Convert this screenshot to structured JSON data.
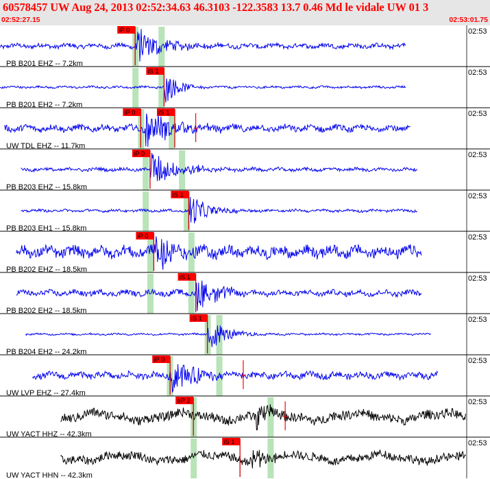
{
  "title": "60578457 UW Aug 24, 2013 02:52:34.63    46.3103 -122.3583 13.7 0.46 Md le vidale UW 01    3",
  "start_time": "02:52:27.15",
  "end_time": "02:53:01.75",
  "colors": {
    "header_bg": "#e6e6e6",
    "header_text": "#ff0000",
    "pick_bg": "#ff0000",
    "window": "#b9e3b9",
    "trace_blue": "#0000ee",
    "trace_black": "#000000",
    "separator": "#000000"
  },
  "chart_data": {
    "type": "line",
    "time_range": [
      "02:52:27.15",
      "02:53:01.75"
    ],
    "traces": [
      {
        "label": "PB B201 EHZ -- 7.2km",
        "time_tag": "02:53",
        "color": "#0000ee",
        "amplitude": 0.25,
        "trace_start": 0.0,
        "trace_end": 0.872,
        "event_onset": 0.29,
        "coda_len": 0.12,
        "picks": [
          {
            "text": "iP 0",
            "t": 0.29
          }
        ],
        "windows": [
          0.29,
          0.346
        ]
      },
      {
        "label": "PB B201 EH2 -- 7.2km",
        "time_tag": "02:53",
        "color": "#0000ee",
        "amplitude": 0.12,
        "trace_start": 0.0,
        "trace_end": 0.872,
        "event_onset": 0.352,
        "coda_len": 0.06,
        "picks": [
          {
            "text": "iS 1",
            "t": 0.352
          }
        ],
        "windows": [
          0.29,
          0.346
        ]
      },
      {
        "label": "UW TDL EHZ -- 11.7km",
        "time_tag": "02:53",
        "color": "#0000ee",
        "amplitude": 0.35,
        "trace_start": 0.01,
        "trace_end": 0.882,
        "event_onset": 0.31,
        "coda_len": 0.14,
        "picks": [
          {
            "text": "iP 0",
            "t": 0.302
          },
          {
            "text": "iS 1",
            "t": 0.375
          }
        ],
        "windows": [
          0.302,
          0.368
        ],
        "marks": [
          0.42
        ]
      },
      {
        "label": "PB B203 EHZ -- 15.8km",
        "time_tag": "02:53",
        "color": "#0000ee",
        "amplitude": 0.18,
        "trace_start": 0.045,
        "trace_end": 0.895,
        "event_onset": 0.322,
        "coda_len": 0.12,
        "picks": [
          {
            "text": "iP 0",
            "t": 0.322
          }
        ],
        "windows": [
          0.312,
          0.39
        ]
      },
      {
        "label": "PB B203 EH1 -- 15.8km",
        "time_tag": "02:53",
        "color": "#0000ee",
        "amplitude": 0.14,
        "trace_start": 0.045,
        "trace_end": 0.895,
        "event_onset": 0.405,
        "coda_len": 0.08,
        "picks": [
          {
            "text": "iS 1",
            "t": 0.405
          }
        ],
        "windows": [
          0.312,
          0.4
        ]
      },
      {
        "label": "PB B202 EHZ -- 18.5km",
        "time_tag": "02:53",
        "color": "#0000ee",
        "amplitude": 0.6,
        "trace_start": 0.035,
        "trace_end": 0.905,
        "event_onset": 0.33,
        "coda_len": 0.1,
        "picks": [
          {
            "text": "iP 0",
            "t": 0.33
          }
        ],
        "windows": [
          0.322,
          0.41
        ]
      },
      {
        "label": "PB B202 EH2 -- 18.5km",
        "time_tag": "02:53",
        "color": "#0000ee",
        "amplitude": 0.3,
        "trace_start": 0.035,
        "trace_end": 0.905,
        "event_onset": 0.42,
        "coda_len": 0.1,
        "picks": [
          {
            "text": "iS 1",
            "t": 0.42
          }
        ],
        "windows": [
          0.322,
          0.41
        ]
      },
      {
        "label": "PB B204 EH2 -- 24.2km",
        "time_tag": "02:53",
        "color": "#0000ee",
        "amplitude": 0.1,
        "trace_start": 0.055,
        "trace_end": 0.925,
        "event_onset": 0.445,
        "coda_len": 0.08,
        "picks": [
          {
            "text": "iS 1",
            "t": 0.445
          }
        ],
        "windows": [
          0.445,
          0.47
        ]
      },
      {
        "label": "UW LVP EHZ -- 27.4km",
        "time_tag": "02:53",
        "color": "#0000ee",
        "amplitude": 0.35,
        "trace_start": 0.07,
        "trace_end": 0.94,
        "event_onset": 0.365,
        "coda_len": 0.12,
        "picks": [
          {
            "text": "iP 0",
            "t": 0.365
          }
        ],
        "windows": [
          0.364,
          0.47
        ],
        "marks": [
          0.522
        ]
      },
      {
        "label": "UW YACT HHZ -- 42.3km",
        "time_tag": "02:53",
        "color": "#000000",
        "amplitude": 0.55,
        "trace_start": 0.13,
        "trace_end": 1.0,
        "event_onset": 0.55,
        "coda_len": 0.05,
        "picks": [
          {
            "text": "eP 2",
            "t": 0.415
          }
        ],
        "windows": [
          0.415,
          0.58
        ],
        "marks": [
          0.612
        ]
      },
      {
        "label": "UW YACT HHN -- 42.3km",
        "time_tag": "02:53",
        "color": "#000000",
        "amplitude": 0.5,
        "trace_start": 0.13,
        "trace_end": 1.0,
        "event_onset": 0.54,
        "coda_len": 0.05,
        "picks": [
          {
            "text": "iS 1",
            "t": 0.515
          }
        ],
        "windows": [
          0.415,
          0.58
        ]
      }
    ]
  }
}
